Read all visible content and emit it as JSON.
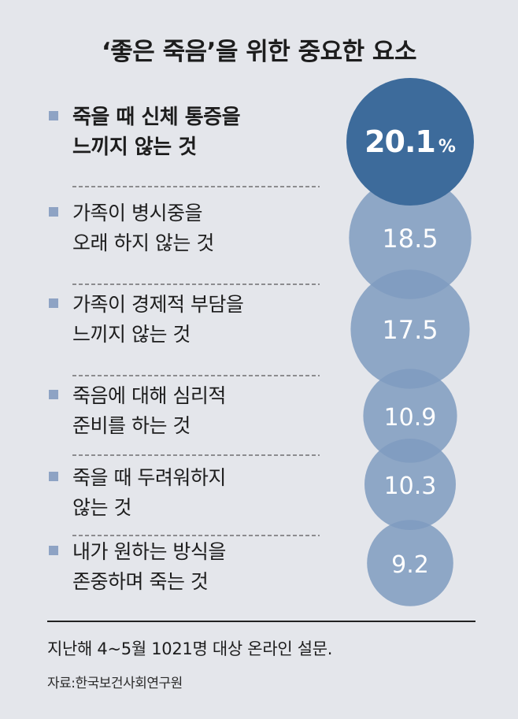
{
  "title": "‘좋은 죽음’을 위한 중요한 요소",
  "chart_data": {
    "type": "bubble",
    "unit": "%",
    "items": [
      {
        "label_lines": [
          "죽을 때 신체 통증을",
          "느끼지 않는 것"
        ],
        "value": 20.1,
        "value_text": "20.1"
      },
      {
        "label_lines": [
          "가족이 병시중을",
          "오래 하지 않는 것"
        ],
        "value": 18.5,
        "value_text": "18.5"
      },
      {
        "label_lines": [
          "가족이 경제적 부담을",
          "느끼지 않는 것"
        ],
        "value": 17.5,
        "value_text": "17.5"
      },
      {
        "label_lines": [
          "죽음에 대해 심리적",
          "준비를 하는 것"
        ],
        "value": 10.9,
        "value_text": "10.9"
      },
      {
        "label_lines": [
          "죽을 때 두려워하지",
          "않는 것"
        ],
        "value": 10.3,
        "value_text": "10.3"
      },
      {
        "label_lines": [
          "내가 원하는 방식을",
          "존중하며 죽는 것"
        ],
        "value": 9.2,
        "value_text": "9.2"
      }
    ]
  },
  "colors": {
    "background": "#e4e6eb",
    "highlight_bubble": "#3d6b9b",
    "bubble": "#7f9bbf",
    "bullet": "#8ea3c4",
    "text": "#1d1d1d"
  },
  "footer": {
    "note": "지난해 4~5월 1021명 대상 온라인 설문.",
    "source": "자료:한국보건사회연구원"
  }
}
